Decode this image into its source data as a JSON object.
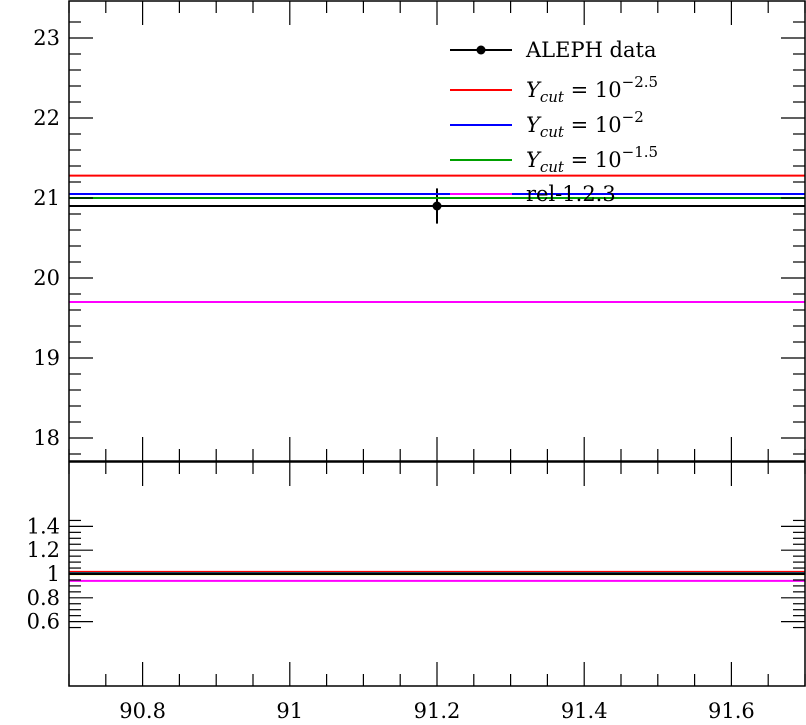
{
  "chart_data": [
    {
      "type": "line",
      "panel": "main",
      "xlim": [
        90.7,
        91.7
      ],
      "ylim": [
        17.7,
        23.4
      ],
      "yticks": [
        18,
        19,
        20,
        21,
        22,
        23
      ],
      "ytick_labels": [
        "18",
        "19",
        "20",
        "21",
        "22",
        "23"
      ],
      "legend": {
        "placement": "top-right",
        "entries": [
          {
            "series": 0,
            "label": "ALEPH data"
          },
          {
            "series": 1,
            "label_main": "Y",
            "label_sub": "cut",
            "label_eq": " = 10",
            "label_sup": "−2.5"
          },
          {
            "series": 2,
            "label_main": "Y",
            "label_sub": "cut",
            "label_eq": " = 10",
            "label_sup": "−2"
          },
          {
            "series": 3,
            "label_main": "Y",
            "label_sub": "cut",
            "label_eq": " = 10",
            "label_sup": "−1.5"
          },
          {
            "series": 4,
            "label": "rel-1.2.3"
          }
        ]
      },
      "series": [
        {
          "name": "ALEPH data",
          "color": "#000000",
          "kind": "data",
          "x": 91.2,
          "y": 20.9,
          "yerr": 0.22
        },
        {
          "color": "#ff0000",
          "kind": "hline",
          "y": 21.28
        },
        {
          "color": "#0000ff",
          "kind": "hline",
          "y": 21.05
        },
        {
          "color": "#00a000",
          "kind": "hline",
          "y": 21.0
        },
        {
          "color": "#ff00ff",
          "kind": "hline",
          "y": 19.7
        }
      ]
    },
    {
      "type": "line",
      "panel": "ratio",
      "xlim": [
        90.7,
        91.7
      ],
      "ylim": [
        0.5,
        1.5
      ],
      "xticks": [
        90.8,
        91.0,
        91.2,
        91.4,
        91.6
      ],
      "xtick_labels": [
        "90.8",
        "91",
        "91.2",
        "91.4",
        "91.6"
      ],
      "yticks": [
        0.6,
        0.8,
        1.0,
        1.2,
        1.4
      ],
      "ytick_labels": [
        "0.6",
        "0.8",
        "1",
        "1.2",
        "1.4"
      ],
      "band": {
        "color": "#ffff00",
        "y": [
          0.99,
          1.01
        ]
      },
      "series": [
        {
          "color": "#ff0000",
          "kind": "hline",
          "y": 1.018
        },
        {
          "color": "#0000ff",
          "kind": "hline",
          "y": 1.007
        },
        {
          "color": "#00a000",
          "kind": "hline",
          "y": 1.004
        },
        {
          "color": "#000000",
          "kind": "hline",
          "y": 1.0
        },
        {
          "color": "#ff00ff",
          "kind": "hline",
          "y": 0.942
        }
      ]
    }
  ]
}
